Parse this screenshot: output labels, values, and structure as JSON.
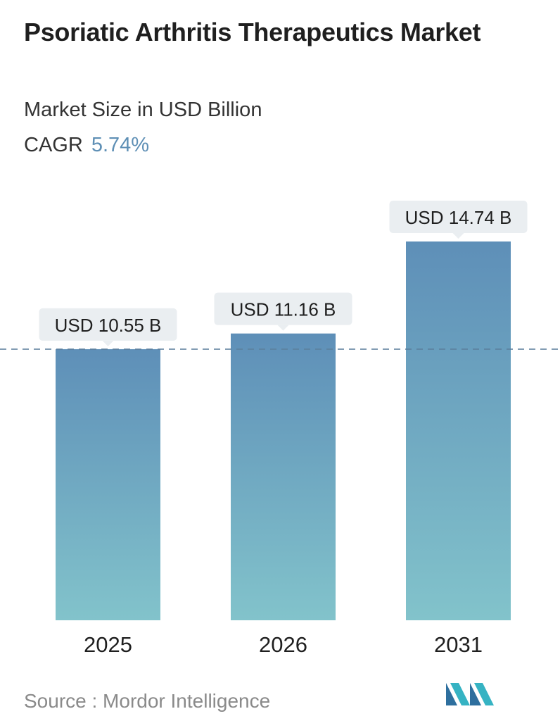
{
  "header": {
    "title": "Psoriatic Arthritis Therapeutics Market",
    "subtitle": "Market Size in USD Billion",
    "cagr_label": "CAGR",
    "cagr_value": "5.74%"
  },
  "chart_data": {
    "type": "bar",
    "title": "Psoriatic Arthritis Therapeutics Market",
    "subtitle": "Market Size in USD Billion",
    "categories": [
      "2025",
      "2026",
      "2031"
    ],
    "values": [
      10.55,
      11.16,
      14.74
    ],
    "value_labels": [
      "USD 10.55 B",
      "USD 11.16 B",
      "USD 14.74 B"
    ],
    "xlabel": "",
    "ylabel": "",
    "reference_line": {
      "value": 10.55,
      "style": "dashed"
    },
    "grid": false,
    "legend": "none",
    "colors": {
      "bar_top": "#5e8fb8",
      "bar_bottom": "#82c3cb",
      "reference_line": "#5b7f9c",
      "label_bg": "#eaeef1"
    }
  },
  "footer": {
    "source_text": "Source :  Mordor Intelligence",
    "logo_icon": "mordor-intelligence-logo-icon"
  }
}
